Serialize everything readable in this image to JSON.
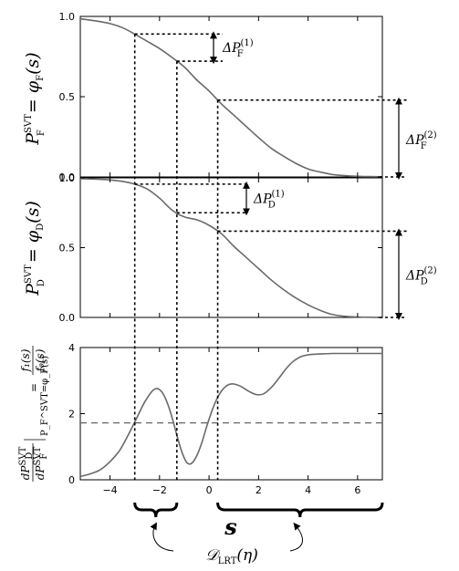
{
  "chart_data": [
    {
      "type": "line",
      "id": "top",
      "ylabel": "P_F^SVT = φ_F(s)",
      "ylabel_text": {
        "main": "P",
        "sup": "SVT",
        "sub": "F",
        "rest": " = φ",
        "rest_sub": "F",
        "arg": "(s)"
      },
      "xlim": [
        -5.2,
        7
      ],
      "ylim": [
        0,
        1
      ],
      "yticks": [
        "0.0",
        "0.5",
        "1.0"
      ],
      "series": [
        {
          "x": [
            -5.2,
            -4.5,
            -4,
            -3.5,
            -3,
            -2.5,
            -2,
            -1.5,
            -1,
            -0.5,
            0,
            0.5,
            1,
            1.5,
            2,
            2.5,
            3,
            3.5,
            4,
            4.5,
            5,
            5.5,
            6,
            6.5,
            7
          ],
          "y": [
            0.985,
            0.97,
            0.955,
            0.93,
            0.89,
            0.845,
            0.8,
            0.745,
            0.685,
            0.605,
            0.535,
            0.455,
            0.385,
            0.315,
            0.245,
            0.18,
            0.13,
            0.085,
            0.05,
            0.03,
            0.015,
            0.008,
            0.004,
            0.002,
            0.001
          ]
        }
      ],
      "annotations": [
        {
          "label": "ΔP",
          "sub": "F",
          "sup": "(1)"
        },
        {
          "label": "ΔP",
          "sub": "F",
          "sup": "(2)"
        }
      ]
    },
    {
      "type": "line",
      "id": "mid",
      "ylabel": "P_D^SVT = φ_D(s)",
      "ylabel_text": {
        "main": "P",
        "sup": "SVT",
        "sub": "D",
        "rest": " = φ",
        "rest_sub": "D",
        "arg": "(s)"
      },
      "xlim": [
        -5.2,
        7
      ],
      "ylim": [
        0,
        1
      ],
      "yticks": [
        "0.0",
        "0.5",
        "1.0"
      ],
      "series": [
        {
          "x": [
            -5.2,
            -4.5,
            -4,
            -3.5,
            -3,
            -2.5,
            -2,
            -1.5,
            -1,
            -0.5,
            0,
            0.5,
            1,
            1.5,
            2,
            2.5,
            3,
            3.5,
            4,
            4.5,
            5,
            5.5,
            6,
            6.5,
            7
          ],
          "y": [
            0.995,
            0.99,
            0.985,
            0.975,
            0.955,
            0.92,
            0.855,
            0.77,
            0.72,
            0.7,
            0.66,
            0.6,
            0.51,
            0.43,
            0.35,
            0.27,
            0.2,
            0.14,
            0.09,
            0.05,
            0.02,
            0.008,
            0.003,
            0.001,
            0.0
          ]
        }
      ],
      "annotations": [
        {
          "label": "ΔP",
          "sub": "D",
          "sup": "(1)"
        },
        {
          "label": "ΔP",
          "sub": "D",
          "sup": "(2)"
        }
      ]
    },
    {
      "type": "line",
      "id": "bottom",
      "ylabel_top": {
        "frac_num": "f₁(s)",
        "frac_den": "f₀(s)",
        "eq": "="
      },
      "ylabel_bottom": {
        "num": "dP",
        "num_sub": "D",
        "num_sup": "SVT",
        "den": "dP",
        "den_sub": "F",
        "den_sup": "SVT",
        "eval": "P_F^SVT=φ_F(s)"
      },
      "xlim": [
        -5.2,
        7
      ],
      "ylim": [
        0,
        4
      ],
      "xticks": [
        "−4",
        "−2",
        "0",
        "2",
        "4",
        "6"
      ],
      "xtick_values": [
        -4,
        -2,
        0,
        2,
        4,
        6
      ],
      "yticks": [
        "0",
        "2",
        "4"
      ],
      "threshold": 1.72,
      "series": [
        {
          "x": [
            -5.2,
            -4.8,
            -4.4,
            -4,
            -3.6,
            -3.2,
            -2.9,
            -2.6,
            -2.3,
            -2.1,
            -1.9,
            -1.7,
            -1.5,
            -1.3,
            -1.1,
            -0.9,
            -0.7,
            -0.5,
            -0.3,
            -0.1,
            0.1,
            0.3,
            0.5,
            0.7,
            0.9,
            1.1,
            1.3,
            1.6,
            1.9,
            2.2,
            2.5,
            2.8,
            3.1,
            3.4,
            3.7,
            4.0,
            4.3,
            4.6,
            5.0,
            5.5,
            6.0,
            6.5,
            7.0
          ],
          "y": [
            0.1,
            0.18,
            0.3,
            0.55,
            0.9,
            1.45,
            1.9,
            2.35,
            2.68,
            2.76,
            2.65,
            2.35,
            1.9,
            1.35,
            0.85,
            0.52,
            0.5,
            0.72,
            1.1,
            1.6,
            2.05,
            2.42,
            2.68,
            2.84,
            2.9,
            2.88,
            2.82,
            2.68,
            2.58,
            2.6,
            2.78,
            3.05,
            3.35,
            3.58,
            3.72,
            3.78,
            3.8,
            3.81,
            3.82,
            3.82,
            3.82,
            3.82,
            3.82
          ]
        }
      ],
      "xlabel": "s",
      "brace_label": "𝒟",
      "brace_label_sub": "LRT",
      "brace_label_arg": "(η)"
    }
  ],
  "guides": {
    "s1": -3.0,
    "s2": -1.3,
    "s3": 0.35
  }
}
